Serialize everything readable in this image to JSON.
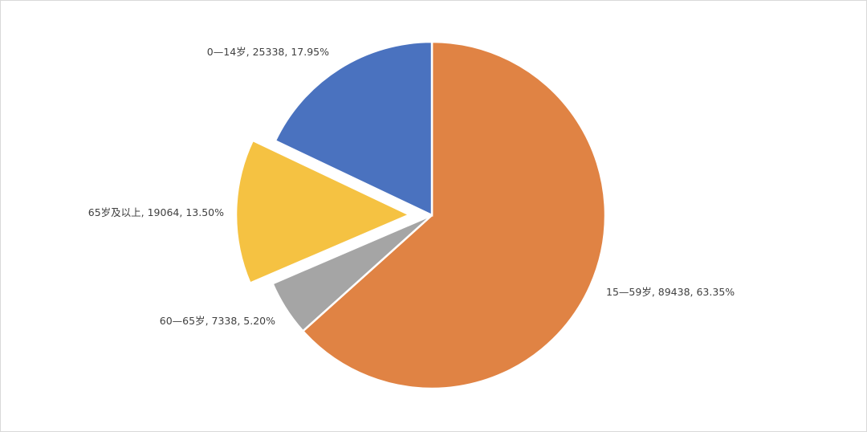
{
  "chart_data": {
    "type": "pie",
    "categories": [
      "15—59岁",
      "60—65岁",
      "65岁及以上",
      "0—14岁"
    ],
    "values": [
      89438,
      7338,
      19064,
      25338
    ],
    "percents": [
      63.35,
      5.2,
      13.5,
      17.95
    ],
    "percent_labels": [
      "63.35%",
      "5.20%",
      "13.50%",
      "17.95%"
    ],
    "label_separator": ", ",
    "colors": [
      "#e08344",
      "#a5a5a5",
      "#f5c242",
      "#4a72bf"
    ],
    "exploded": [
      false,
      false,
      true,
      false
    ]
  }
}
